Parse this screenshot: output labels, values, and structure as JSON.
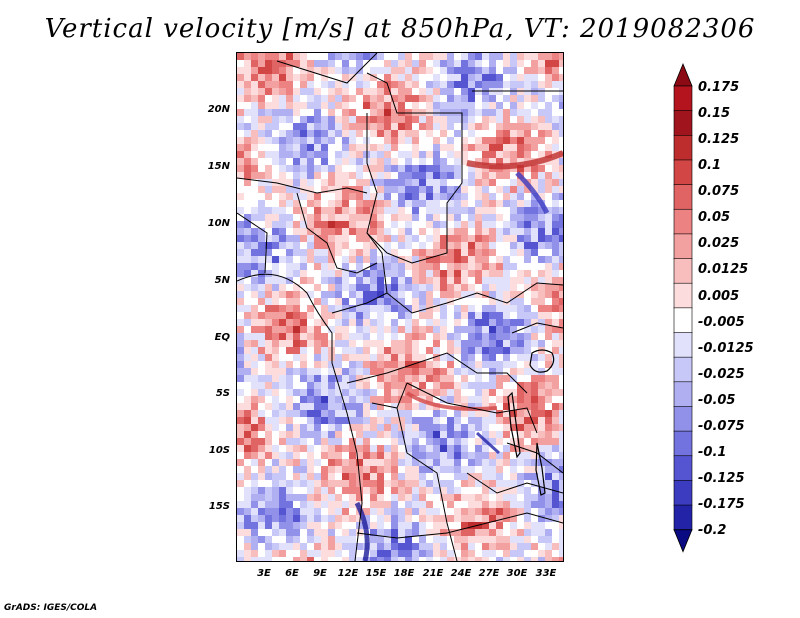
{
  "title": "Vertical velocity [m/s] at 850hPa, VT: 2019082306",
  "map": {
    "region": "Central Africa",
    "lat_labels": [
      "20N",
      "15N",
      "10N",
      "5N",
      "EQ",
      "5S",
      "10S",
      "15S"
    ],
    "lon_labels": [
      "3E",
      "6E",
      "9E",
      "12E",
      "15E",
      "18E",
      "21E",
      "24E",
      "27E",
      "30E",
      "33E"
    ]
  },
  "colorbar": {
    "labels": [
      "0.175",
      "0.15",
      "0.125",
      "0.1",
      "0.075",
      "0.05",
      "0.025",
      "0.0125",
      "0.005",
      "-0.005",
      "-0.0125",
      "-0.025",
      "-0.05",
      "-0.075",
      "-0.1",
      "-0.125",
      "-0.175",
      "-0.2"
    ],
    "colors": [
      "#a0141e",
      "#be2d2d",
      "#d24646",
      "#e16464",
      "#ec8282",
      "#f2a0a0",
      "#f8bebe",
      "#fcdcdc",
      "#ffffff",
      "#e1e1fc",
      "#c8c8f8",
      "#afaff2",
      "#9191ea",
      "#7373e0",
      "#5555d2",
      "#3c3cc0",
      "#2323a8",
      "#141496"
    ]
  },
  "footer": "GrADS: IGES/COLA"
}
